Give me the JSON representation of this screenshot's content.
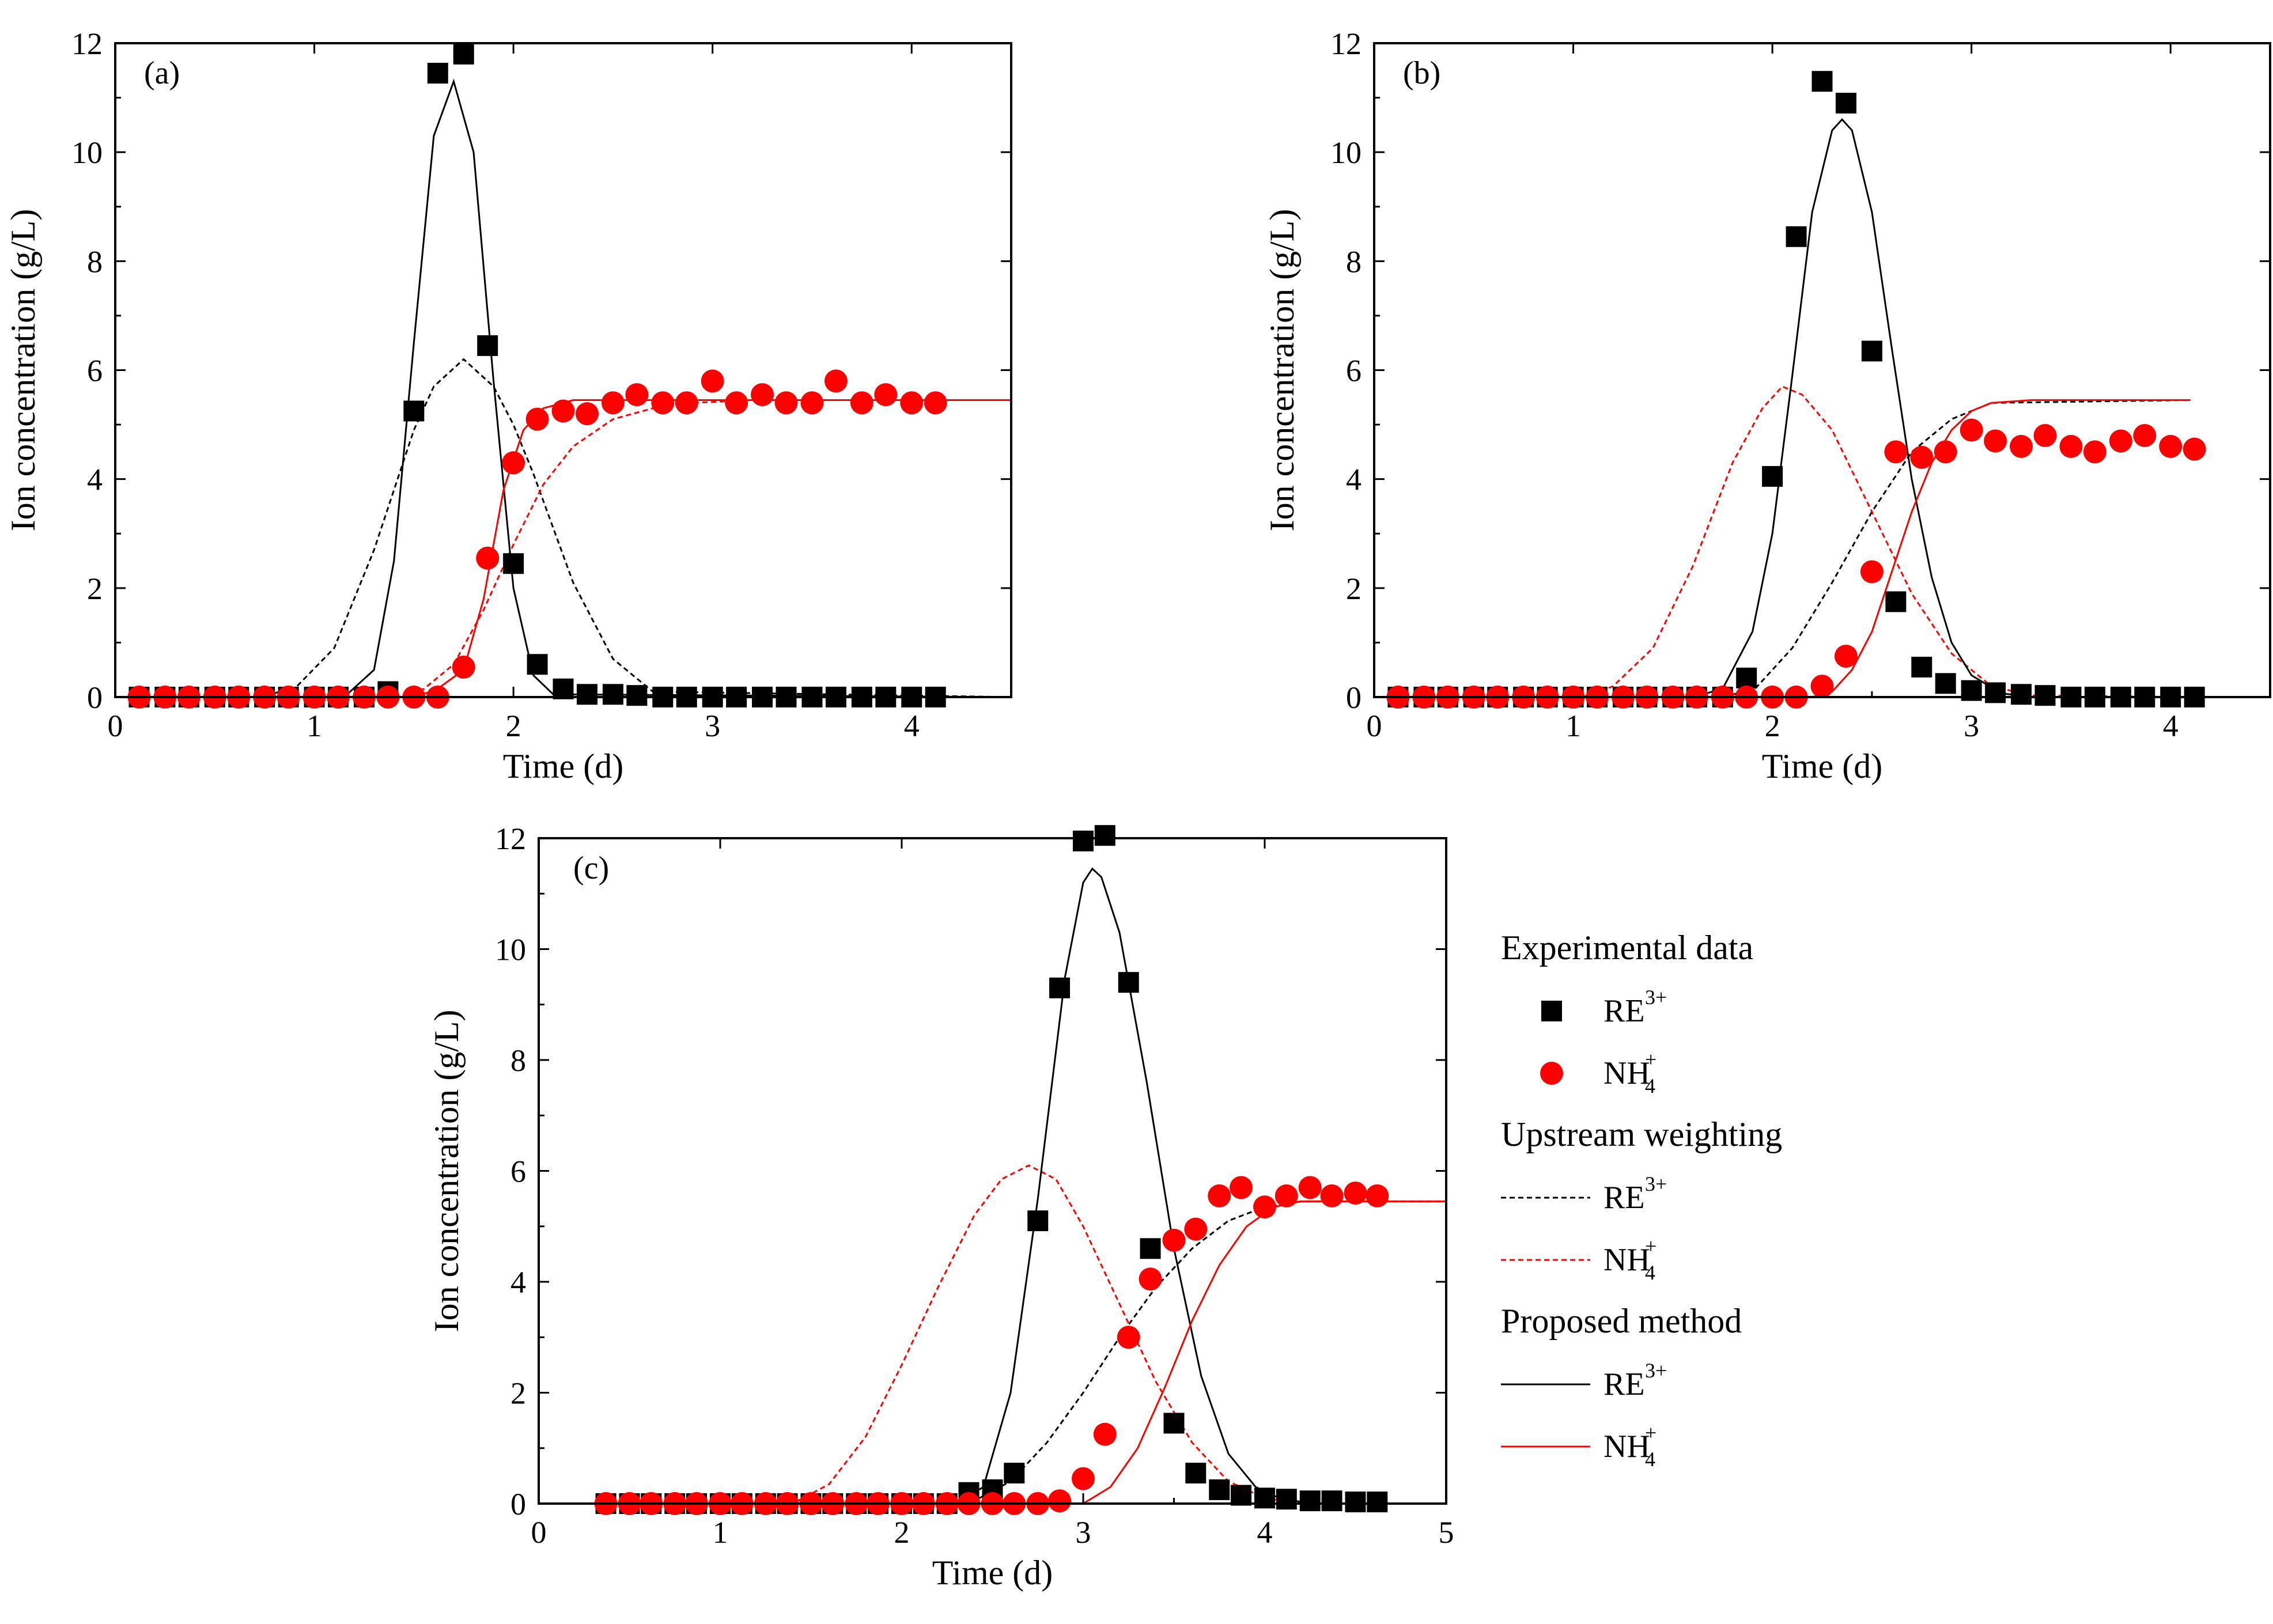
{
  "figure": {
    "legend": {
      "groups": [
        {
          "heading": "Experimental data",
          "items": [
            {
              "label": "RE",
              "sup": "3+",
              "sub": "",
              "marker": "square",
              "color": "#000000"
            },
            {
              "label": "NH",
              "sup": "+",
              "sub": "4",
              "marker": "circle",
              "color": "#ff0000"
            }
          ]
        },
        {
          "heading": "Upstream weighting",
          "items": [
            {
              "label": "RE",
              "sup": "3+",
              "sub": "",
              "line": "dashed",
              "color": "#000000"
            },
            {
              "label": "NH",
              "sup": "+",
              "sub": "4",
              "line": "dashed",
              "color": "#ff0000"
            }
          ]
        },
        {
          "heading": "Proposed method",
          "items": [
            {
              "label": "RE",
              "sup": "3+",
              "sub": "",
              "line": "solid",
              "color": "#000000"
            },
            {
              "label": "NH",
              "sup": "+",
              "sub": "4",
              "line": "solid",
              "color": "#ff0000"
            }
          ]
        }
      ]
    }
  },
  "chart_data": [
    {
      "type": "scatter",
      "panel_label": "(a)",
      "xlabel": "Time (d)",
      "ylabel": "Ion concentration (g/L)",
      "xlim": [
        0,
        4.5
      ],
      "ylim": [
        0,
        12
      ],
      "xticks": [
        0,
        1,
        2,
        3,
        4
      ],
      "yticks": [
        0,
        2,
        4,
        6,
        8,
        10,
        12
      ],
      "series": [
        {
          "name": "RE3+",
          "kind": "markers",
          "marker": "square",
          "color": "#000000",
          "x": [
            0.12,
            0.25,
            0.37,
            0.5,
            0.62,
            0.75,
            0.87,
            1.0,
            1.12,
            1.25,
            1.37,
            1.5,
            1.62,
            1.75,
            1.87,
            2.0,
            2.12,
            2.25,
            2.37,
            2.5,
            2.62,
            2.75,
            2.87,
            3.0,
            3.12,
            3.25,
            3.37,
            3.5,
            3.62,
            3.75,
            3.87,
            4.0,
            4.12
          ],
          "y": [
            0,
            0,
            0,
            0,
            0,
            0,
            0,
            0,
            0,
            0,
            0.1,
            5.25,
            11.45,
            11.8,
            6.45,
            2.45,
            0.6,
            0.15,
            0.05,
            0.05,
            0.03,
            0,
            0,
            0,
            0,
            0,
            0,
            0,
            0,
            0,
            0,
            0,
            0
          ]
        },
        {
          "name": "NH4+",
          "kind": "markers",
          "marker": "circle",
          "color": "#ff0000",
          "x": [
            0.12,
            0.25,
            0.37,
            0.5,
            0.62,
            0.75,
            0.87,
            1.0,
            1.12,
            1.25,
            1.37,
            1.5,
            1.62,
            1.75,
            1.87,
            2.0,
            2.12,
            2.25,
            2.37,
            2.5,
            2.62,
            2.75,
            2.87,
            3.0,
            3.12,
            3.25,
            3.37,
            3.5,
            3.62,
            3.75,
            3.87,
            4.0,
            4.12
          ],
          "y": [
            0,
            0,
            0,
            0,
            0,
            0,
            0,
            0,
            0,
            0,
            0,
            0,
            0,
            0.55,
            2.55,
            4.3,
            5.1,
            5.25,
            5.2,
            5.4,
            5.55,
            5.4,
            5.4,
            5.8,
            5.4,
            5.55,
            5.4,
            5.4,
            5.8,
            5.4,
            5.55,
            5.4,
            5.4
          ]
        },
        {
          "name": "RE3+ upstream weighting",
          "kind": "line",
          "dash": "dashed",
          "color": "#000000",
          "x": [
            0.1,
            0.7,
            0.9,
            1.1,
            1.3,
            1.5,
            1.6,
            1.75,
            1.9,
            2.0,
            2.1,
            2.3,
            2.5,
            2.7,
            4.5
          ],
          "y": [
            0,
            0,
            0.15,
            0.9,
            2.7,
            4.9,
            5.7,
            6.2,
            5.7,
            5.0,
            4.1,
            2.1,
            0.7,
            0.1,
            0
          ]
        },
        {
          "name": "NH4+ upstream weighting",
          "kind": "line",
          "dash": "dashed",
          "color": "#ff0000",
          "x": [
            0.1,
            1.4,
            1.55,
            1.7,
            1.85,
            2.0,
            2.15,
            2.3,
            2.5,
            2.7,
            2.9,
            3.2,
            4.5
          ],
          "y": [
            0,
            0,
            0.15,
            0.6,
            1.6,
            2.8,
            3.9,
            4.6,
            5.1,
            5.3,
            5.4,
            5.45,
            5.45
          ]
        },
        {
          "name": "RE3+ proposed method",
          "kind": "line",
          "dash": "solid",
          "color": "#000000",
          "x": [
            0.1,
            1.15,
            1.3,
            1.4,
            1.5,
            1.6,
            1.7,
            1.8,
            1.9,
            2.0,
            2.1,
            2.2,
            4.5
          ],
          "y": [
            0,
            0,
            0.5,
            2.5,
            6.5,
            10.3,
            11.3,
            10.0,
            5.8,
            2.0,
            0.4,
            0.05,
            0
          ]
        },
        {
          "name": "NH4+ proposed method",
          "kind": "line",
          "dash": "solid",
          "color": "#ff0000",
          "x": [
            0.1,
            1.45,
            1.6,
            1.75,
            1.85,
            1.95,
            2.05,
            2.15,
            2.3,
            2.5,
            4.5
          ],
          "y": [
            0,
            0,
            0.1,
            0.5,
            1.8,
            3.8,
            4.9,
            5.3,
            5.45,
            5.45,
            5.45
          ]
        }
      ]
    },
    {
      "type": "scatter",
      "panel_label": "(b)",
      "xlabel": "Time (d)",
      "ylabel": "Ion concentration (g/L)",
      "xlim": [
        0,
        4.5
      ],
      "ylim": [
        0,
        12
      ],
      "xticks": [
        0,
        1,
        2,
        3,
        4
      ],
      "yticks": [
        0,
        2,
        4,
        6,
        8,
        10,
        12
      ],
      "series": [
        {
          "name": "RE3+",
          "kind": "markers",
          "marker": "square",
          "color": "#000000",
          "x": [
            0.12,
            0.25,
            0.37,
            0.5,
            0.62,
            0.75,
            0.87,
            1.0,
            1.12,
            1.25,
            1.37,
            1.5,
            1.62,
            1.75,
            1.87,
            2.0,
            2.12,
            2.25,
            2.37,
            2.5,
            2.62,
            2.75,
            2.87,
            3.0,
            3.12,
            3.25,
            3.37,
            3.5,
            3.62,
            3.75,
            3.87,
            4.0,
            4.12
          ],
          "y": [
            0,
            0,
            0,
            0,
            0,
            0,
            0,
            0,
            0,
            0,
            0,
            0,
            0,
            0,
            0.35,
            4.05,
            8.45,
            11.3,
            10.9,
            6.35,
            1.75,
            0.55,
            0.25,
            0.12,
            0.08,
            0.05,
            0.03,
            0,
            0,
            0,
            0,
            0,
            0
          ]
        },
        {
          "name": "NH4+",
          "kind": "markers",
          "marker": "circle",
          "color": "#ff0000",
          "x": [
            0.12,
            0.25,
            0.37,
            0.5,
            0.62,
            0.75,
            0.87,
            1.0,
            1.12,
            1.25,
            1.37,
            1.5,
            1.62,
            1.75,
            1.87,
            2.0,
            2.12,
            2.25,
            2.37,
            2.5,
            2.62,
            2.75,
            2.87,
            3.0,
            3.12,
            3.25,
            3.37,
            3.5,
            3.62,
            3.75,
            3.87,
            4.0,
            4.12
          ],
          "y": [
            0,
            0,
            0,
            0,
            0,
            0,
            0,
            0,
            0,
            0,
            0,
            0,
            0,
            0,
            0,
            0,
            0,
            0.2,
            0.75,
            2.3,
            4.5,
            4.4,
            4.5,
            4.9,
            4.7,
            4.6,
            4.8,
            4.6,
            4.5,
            4.7,
            4.8,
            4.6,
            4.55
          ]
        },
        {
          "name": "RE3+ upstream weighting",
          "kind": "line",
          "dash": "dashed",
          "color": "#000000",
          "x": [
            0.1,
            1.7,
            1.9,
            2.1,
            2.3,
            2.5,
            2.7,
            2.9,
            3.1,
            4.1
          ],
          "y": [
            0,
            0,
            0.1,
            0.9,
            2.1,
            3.4,
            4.5,
            5.1,
            5.4,
            5.45
          ]
        },
        {
          "name": "NH4+ upstream weighting",
          "kind": "line",
          "dash": "dashed",
          "color": "#ff0000",
          "x": [
            0.1,
            1.05,
            1.2,
            1.4,
            1.6,
            1.8,
            1.95,
            2.05,
            2.15,
            2.3,
            2.5,
            2.7,
            2.9,
            3.1,
            3.3,
            4.1
          ],
          "y": [
            0,
            0,
            0.2,
            0.9,
            2.4,
            4.3,
            5.3,
            5.7,
            5.55,
            4.9,
            3.4,
            1.9,
            0.8,
            0.2,
            0.03,
            0
          ]
        },
        {
          "name": "RE3+ proposed method",
          "kind": "line",
          "dash": "solid",
          "color": "#000000",
          "x": [
            0.1,
            1.6,
            1.75,
            1.9,
            2.0,
            2.1,
            2.2,
            2.3,
            2.35,
            2.4,
            2.5,
            2.6,
            2.7,
            2.8,
            2.9,
            3.0,
            3.15,
            3.3,
            4.1
          ],
          "y": [
            0,
            0,
            0.15,
            1.2,
            3.0,
            5.9,
            8.9,
            10.4,
            10.6,
            10.4,
            8.9,
            6.4,
            4.0,
            2.2,
            1.0,
            0.4,
            0.07,
            0,
            0
          ]
        },
        {
          "name": "NH4+ proposed method",
          "kind": "line",
          "dash": "solid",
          "color": "#ff0000",
          "x": [
            0.1,
            2.2,
            2.3,
            2.4,
            2.5,
            2.6,
            2.7,
            2.8,
            2.9,
            3.0,
            3.1,
            3.3,
            4.1
          ],
          "y": [
            0,
            0,
            0.1,
            0.5,
            1.2,
            2.3,
            3.4,
            4.3,
            4.9,
            5.25,
            5.4,
            5.45,
            5.45
          ]
        }
      ]
    },
    {
      "type": "scatter",
      "panel_label": "(c)",
      "xlabel": "Time (d)",
      "ylabel": "Ion concentration (g/L)",
      "xlim": [
        0,
        5
      ],
      "ylim": [
        0,
        12
      ],
      "xticks": [
        0,
        1,
        2,
        3,
        4,
        5
      ],
      "yticks": [
        0,
        2,
        4,
        6,
        8,
        10,
        12
      ],
      "series": [
        {
          "name": "RE3+",
          "kind": "markers",
          "marker": "square",
          "color": "#000000",
          "x": [
            0.37,
            0.5,
            0.62,
            0.75,
            0.87,
            1.0,
            1.12,
            1.25,
            1.37,
            1.5,
            1.62,
            1.75,
            1.87,
            2.0,
            2.12,
            2.25,
            2.37,
            2.5,
            2.62,
            2.75,
            2.87,
            3.0,
            3.12,
            3.25,
            3.37,
            3.5,
            3.62,
            3.75,
            3.87,
            4.0,
            4.12,
            4.25,
            4.37,
            4.5,
            4.62
          ],
          "y": [
            0,
            0,
            0,
            0,
            0,
            0,
            0,
            0,
            0,
            0,
            0,
            0,
            0,
            0,
            0,
            0,
            0.2,
            0.25,
            0.55,
            5.1,
            9.3,
            11.95,
            12.05,
            9.4,
            4.6,
            1.45,
            0.55,
            0.25,
            0.15,
            0.1,
            0.08,
            0.05,
            0.05,
            0.03,
            0.03
          ]
        },
        {
          "name": "NH4+",
          "kind": "markers",
          "marker": "circle",
          "color": "#ff0000",
          "x": [
            0.37,
            0.5,
            0.62,
            0.75,
            0.87,
            1.0,
            1.12,
            1.25,
            1.37,
            1.5,
            1.62,
            1.75,
            1.87,
            2.0,
            2.12,
            2.25,
            2.37,
            2.5,
            2.62,
            2.75,
            2.87,
            3.0,
            3.12,
            3.25,
            3.37,
            3.5,
            3.62,
            3.75,
            3.87,
            4.0,
            4.12,
            4.25,
            4.37,
            4.5,
            4.62
          ],
          "y": [
            0,
            0,
            0,
            0,
            0,
            0,
            0,
            0,
            0,
            0,
            0,
            0,
            0,
            0,
            0,
            0,
            0,
            0,
            0,
            0,
            0.05,
            0.45,
            1.25,
            3.0,
            4.05,
            4.75,
            4.95,
            5.55,
            5.7,
            5.35,
            5.55,
            5.7,
            5.55,
            5.6,
            5.55
          ]
        },
        {
          "name": "RE3+ upstream weighting",
          "kind": "line",
          "dash": "dashed",
          "color": "#000000",
          "x": [
            0.0,
            2.25,
            2.4,
            2.6,
            2.8,
            3.0,
            3.2,
            3.4,
            3.6,
            3.8,
            4.0,
            4.2,
            5.0
          ],
          "y": [
            0,
            0,
            0.05,
            0.4,
            1.1,
            2.0,
            3.0,
            3.9,
            4.6,
            5.1,
            5.35,
            5.45,
            5.45
          ]
        },
        {
          "name": "NH4+ upstream weighting",
          "kind": "line",
          "dash": "dashed",
          "color": "#ff0000",
          "x": [
            0.0,
            1.4,
            1.6,
            1.8,
            2.0,
            2.2,
            2.4,
            2.55,
            2.7,
            2.85,
            3.0,
            3.2,
            3.4,
            3.6,
            3.8,
            4.0,
            4.2,
            5.0
          ],
          "y": [
            0,
            0,
            0.35,
            1.2,
            2.5,
            3.9,
            5.2,
            5.85,
            6.1,
            5.85,
            5.0,
            3.6,
            2.2,
            1.1,
            0.4,
            0.1,
            0,
            0
          ]
        },
        {
          "name": "RE3+ proposed method",
          "kind": "line",
          "dash": "solid",
          "color": "#000000",
          "x": [
            0.0,
            2.3,
            2.45,
            2.6,
            2.75,
            2.9,
            3.0,
            3.05,
            3.1,
            3.2,
            3.35,
            3.5,
            3.65,
            3.8,
            3.95,
            4.1,
            4.3,
            5.0
          ],
          "y": [
            0,
            0,
            0.3,
            2.0,
            5.5,
            9.5,
            11.2,
            11.45,
            11.3,
            10.3,
            7.6,
            4.6,
            2.3,
            0.9,
            0.3,
            0.07,
            0,
            0
          ]
        },
        {
          "name": "NH4+ proposed method",
          "kind": "line",
          "dash": "solid",
          "color": "#ff0000",
          "x": [
            0.0,
            3.0,
            3.15,
            3.3,
            3.45,
            3.6,
            3.75,
            3.9,
            4.05,
            4.2,
            4.4,
            5.0
          ],
          "y": [
            0,
            0,
            0.3,
            1.0,
            2.1,
            3.3,
            4.3,
            5.0,
            5.35,
            5.45,
            5.45,
            5.45
          ]
        }
      ]
    }
  ]
}
